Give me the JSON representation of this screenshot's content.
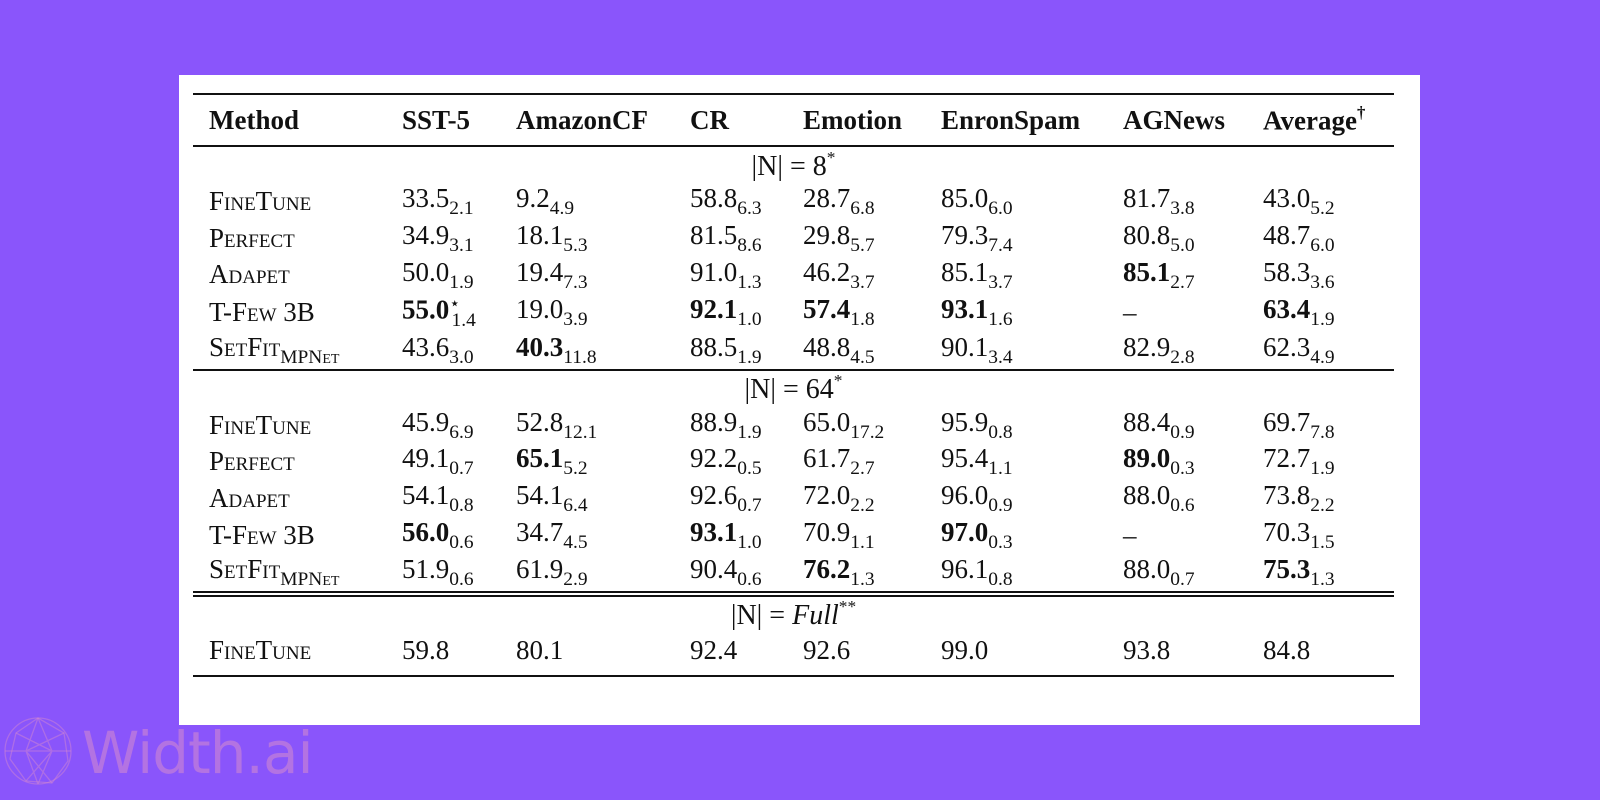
{
  "table": {
    "headers": [
      "Method",
      "SST-5",
      "AmazonCF",
      "CR",
      "Emotion",
      "EnronSpam",
      "AGNews",
      "Average",
      "†"
    ],
    "sections": [
      {
        "label": {
          "prefix": "|N| = ",
          "value": "8",
          "mark": "*"
        },
        "rows": [
          {
            "method": "FineTune",
            "sub": "",
            "cells": [
              {
                "v": "33.5",
                "sd": "2.1"
              },
              {
                "v": "9.2",
                "sd": "4.9"
              },
              {
                "v": "58.8",
                "sd": "6.3"
              },
              {
                "v": "28.7",
                "sd": "6.8"
              },
              {
                "v": "85.0",
                "sd": "6.0"
              },
              {
                "v": "81.7",
                "sd": "3.8"
              },
              {
                "v": "43.0",
                "sd": "5.2"
              }
            ]
          },
          {
            "method": "Perfect",
            "sub": "",
            "cells": [
              {
                "v": "34.9",
                "sd": "3.1"
              },
              {
                "v": "18.1",
                "sd": "5.3"
              },
              {
                "v": "81.5",
                "sd": "8.6"
              },
              {
                "v": "29.8",
                "sd": "5.7"
              },
              {
                "v": "79.3",
                "sd": "7.4"
              },
              {
                "v": "80.8",
                "sd": "5.0"
              },
              {
                "v": "48.7",
                "sd": "6.0"
              }
            ]
          },
          {
            "method": "Adapet",
            "sub": "",
            "cells": [
              {
                "v": "50.0",
                "sd": "1.9"
              },
              {
                "v": "19.4",
                "sd": "7.3"
              },
              {
                "v": "91.0",
                "sd": "1.3"
              },
              {
                "v": "46.2",
                "sd": "3.7"
              },
              {
                "v": "85.1",
                "sd": "3.7"
              },
              {
                "v": "85.1",
                "sd": "2.7",
                "bold": true
              },
              {
                "v": "58.3",
                "sd": "3.6"
              }
            ]
          },
          {
            "method": "T-Few 3B",
            "sub": "",
            "cells": [
              {
                "v": "55.0",
                "sd": "1.4",
                "bold": true,
                "star": "⋆"
              },
              {
                "v": "19.0",
                "sd": "3.9"
              },
              {
                "v": "92.1",
                "sd": "1.0",
                "bold": true
              },
              {
                "v": "57.4",
                "sd": "1.8",
                "bold": true
              },
              {
                "v": "93.1",
                "sd": "1.6",
                "bold": true
              },
              {
                "v": "–",
                "sd": ""
              },
              {
                "v": "63.4",
                "sd": "1.9",
                "bold": true
              }
            ]
          },
          {
            "method": "SetFit",
            "sub": "MPNet",
            "cells": [
              {
                "v": "43.6",
                "sd": "3.0"
              },
              {
                "v": "40.3",
                "sd": "11.8",
                "bold": true
              },
              {
                "v": "88.5",
                "sd": "1.9"
              },
              {
                "v": "48.8",
                "sd": "4.5"
              },
              {
                "v": "90.1",
                "sd": "3.4"
              },
              {
                "v": "82.9",
                "sd": "2.8"
              },
              {
                "v": "62.3",
                "sd": "4.9"
              }
            ]
          }
        ]
      },
      {
        "label": {
          "prefix": "|N| = ",
          "value": "64",
          "mark": "*"
        },
        "rows": [
          {
            "method": "FineTune",
            "sub": "",
            "cells": [
              {
                "v": "45.9",
                "sd": "6.9"
              },
              {
                "v": "52.8",
                "sd": "12.1"
              },
              {
                "v": "88.9",
                "sd": "1.9"
              },
              {
                "v": "65.0",
                "sd": "17.2"
              },
              {
                "v": "95.9",
                "sd": "0.8"
              },
              {
                "v": "88.4",
                "sd": "0.9"
              },
              {
                "v": "69.7",
                "sd": "7.8"
              }
            ]
          },
          {
            "method": "Perfect",
            "sub": "",
            "cells": [
              {
                "v": "49.1",
                "sd": "0.7"
              },
              {
                "v": "65.1",
                "sd": "5.2",
                "bold": true
              },
              {
                "v": "92.2",
                "sd": "0.5"
              },
              {
                "v": "61.7",
                "sd": "2.7"
              },
              {
                "v": "95.4",
                "sd": "1.1"
              },
              {
                "v": "89.0",
                "sd": "0.3",
                "bold": true
              },
              {
                "v": "72.7",
                "sd": "1.9"
              }
            ]
          },
          {
            "method": "Adapet",
            "sub": "",
            "cells": [
              {
                "v": "54.1",
                "sd": "0.8"
              },
              {
                "v": "54.1",
                "sd": "6.4"
              },
              {
                "v": "92.6",
                "sd": "0.7"
              },
              {
                "v": "72.0",
                "sd": "2.2"
              },
              {
                "v": "96.0",
                "sd": "0.9"
              },
              {
                "v": "88.0",
                "sd": "0.6"
              },
              {
                "v": "73.8",
                "sd": "2.2"
              }
            ]
          },
          {
            "method": "T-Few 3B",
            "sub": "",
            "cells": [
              {
                "v": "56.0",
                "sd": "0.6",
                "bold": true
              },
              {
                "v": "34.7",
                "sd": "4.5"
              },
              {
                "v": "93.1",
                "sd": "1.0",
                "bold": true
              },
              {
                "v": "70.9",
                "sd": "1.1"
              },
              {
                "v": "97.0",
                "sd": "0.3",
                "bold": true
              },
              {
                "v": "–",
                "sd": ""
              },
              {
                "v": "70.3",
                "sd": "1.5"
              }
            ]
          },
          {
            "method": "SetFit",
            "sub": "MPNet",
            "cells": [
              {
                "v": "51.9",
                "sd": "0.6"
              },
              {
                "v": "61.9",
                "sd": "2.9"
              },
              {
                "v": "90.4",
                "sd": "0.6"
              },
              {
                "v": "76.2",
                "sd": "1.3",
                "bold": true
              },
              {
                "v": "96.1",
                "sd": "0.8"
              },
              {
                "v": "88.0",
                "sd": "0.7"
              },
              {
                "v": "75.3",
                "sd": "1.3",
                "bold": true
              }
            ]
          }
        ]
      },
      {
        "label": {
          "prefix": "|N| = ",
          "value": "Full",
          "mark": "**"
        },
        "rows": [
          {
            "method": "FineTune",
            "sub": "",
            "cells": [
              {
                "v": "59.8",
                "sd": ""
              },
              {
                "v": "80.1",
                "sd": ""
              },
              {
                "v": "92.4",
                "sd": ""
              },
              {
                "v": "92.6",
                "sd": ""
              },
              {
                "v": "99.0",
                "sd": ""
              },
              {
                "v": "93.8",
                "sd": ""
              },
              {
                "v": "84.8",
                "sd": ""
              }
            ]
          }
        ]
      }
    ]
  },
  "watermark": {
    "text": "Width.ai"
  },
  "colors": {
    "background": "#8a55fb",
    "card": "#ffffff",
    "watermark": "#d68ccd"
  }
}
